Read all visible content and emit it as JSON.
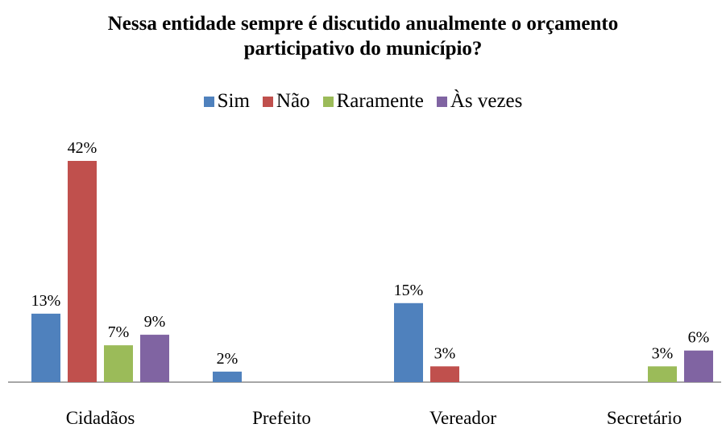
{
  "chart_data": {
    "type": "bar",
    "title": "Nessa entidade sempre é discutido anualmente o orçamento participativo do município?",
    "categories": [
      "Cidadãos",
      "Prefeito",
      "Vereador",
      "Secretário"
    ],
    "series": [
      {
        "name": "Sim",
        "color": "#4f81bd",
        "values": [
          13,
          2,
          15,
          null
        ],
        "value_labels": [
          "13%",
          "2%",
          "15%",
          null
        ]
      },
      {
        "name": "Não",
        "color": "#c0504d",
        "values": [
          42,
          null,
          3,
          null
        ],
        "value_labels": [
          "42%",
          null,
          "3%",
          null
        ]
      },
      {
        "name": "Raramente",
        "color": "#9bbb59",
        "values": [
          7,
          null,
          null,
          3
        ],
        "value_labels": [
          "7%",
          null,
          null,
          "3%"
        ]
      },
      {
        "name": "Às vezes",
        "color": "#8064a2",
        "values": [
          9,
          null,
          null,
          6
        ],
        "value_labels": [
          "9%",
          null,
          null,
          "6%"
        ]
      }
    ],
    "legend": "top"
  }
}
